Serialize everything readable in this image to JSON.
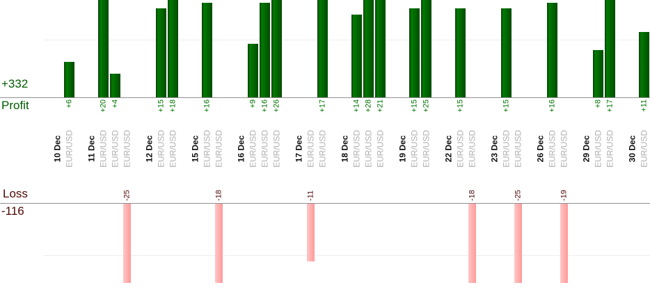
{
  "colors": {
    "background": "#ffffff",
    "profit_text": "#005c00",
    "profit_value_text": "#007400",
    "loss_text": "#4d0505",
    "date_text": "#111111",
    "symbol_text": "#b0b0b0",
    "axis_line": "#8f8f8f",
    "gridline": "#ededed",
    "profit_bar_gradient": [
      "#0d3d0d",
      "#017b01",
      "#024c02"
    ],
    "loss_bar_gradient": [
      "#ffc6c6",
      "#ff9a9a"
    ]
  },
  "chart_data": {
    "type": "bar",
    "symbol": "EUR/USD",
    "profit_axis": {
      "label": "Profit",
      "total": "+332",
      "gridline_value": 10,
      "visible_value_range": [
        0,
        17
      ]
    },
    "loss_axis": {
      "label": "Loss",
      "total": "-116",
      "gridline_value": -10,
      "visible_value_range": [
        0,
        -15
      ]
    },
    "groups": [
      {
        "date": "10 Dec",
        "trades": [
          {
            "symbol": "EUR/USD",
            "value": 6,
            "label": "+6"
          }
        ]
      },
      {
        "date": "11 Dec",
        "trades": [
          {
            "symbol": "EUR/USD",
            "value": 20,
            "label": "+20"
          },
          {
            "symbol": "EUR/USD",
            "value": 4,
            "label": "+4"
          },
          {
            "symbol": "EUR/USD",
            "value": -25,
            "label": "-25"
          }
        ]
      },
      {
        "date": "12 Dec",
        "trades": [
          {
            "symbol": "EUR/USD",
            "value": 15,
            "label": "+15"
          },
          {
            "symbol": "EUR/USD",
            "value": 18,
            "label": "+18"
          }
        ]
      },
      {
        "date": "15 Dec",
        "trades": [
          {
            "symbol": "EUR/USD",
            "value": 16,
            "label": "+16"
          },
          {
            "symbol": "EUR/USD",
            "value": -18,
            "label": "-18"
          }
        ]
      },
      {
        "date": "16 Dec",
        "trades": [
          {
            "symbol": "EUR/USD",
            "value": 9,
            "label": "+9"
          },
          {
            "symbol": "EUR/USD",
            "value": 16,
            "label": "+16"
          },
          {
            "symbol": "EUR/USD",
            "value": 26,
            "label": "+26"
          }
        ]
      },
      {
        "date": "17 Dec",
        "trades": [
          {
            "symbol": "EUR/USD",
            "value": -11,
            "label": "-11"
          },
          {
            "symbol": "EUR/USD",
            "value": 17,
            "label": "+17"
          }
        ]
      },
      {
        "date": "18 Dec",
        "trades": [
          {
            "symbol": "EUR/USD",
            "value": 14,
            "label": "+14"
          },
          {
            "symbol": "EUR/USD",
            "value": 28,
            "label": "+28"
          },
          {
            "symbol": "EUR/USD",
            "value": 21,
            "label": "+21"
          }
        ]
      },
      {
        "date": "19 Dec",
        "trades": [
          {
            "symbol": "EUR/USD",
            "value": 15,
            "label": "+15"
          },
          {
            "symbol": "EUR/USD",
            "value": 25,
            "label": "+25"
          }
        ]
      },
      {
        "date": "22 Dec",
        "trades": [
          {
            "symbol": "EUR/USD",
            "value": 15,
            "label": "+15"
          },
          {
            "symbol": "EUR/USD",
            "value": -18,
            "label": "-18"
          }
        ]
      },
      {
        "date": "23 Dec",
        "trades": [
          {
            "symbol": "EUR/USD",
            "value": 15,
            "label": "+15"
          },
          {
            "symbol": "EUR/USD",
            "value": -25,
            "label": "-25"
          }
        ]
      },
      {
        "date": "26 Dec",
        "trades": [
          {
            "symbol": "EUR/USD",
            "value": 16,
            "label": "+16"
          },
          {
            "symbol": "EUR/USD",
            "value": -19,
            "label": "-19"
          }
        ]
      },
      {
        "date": "29 Dec",
        "trades": [
          {
            "symbol": "EUR/USD",
            "value": 8,
            "label": "+8"
          },
          {
            "symbol": "EUR/USD",
            "value": 17,
            "label": "+17"
          }
        ]
      },
      {
        "date": "30 Dec",
        "trades": [
          {
            "symbol": "EUR/USD",
            "value": 11,
            "label": "+11"
          }
        ]
      }
    ]
  }
}
